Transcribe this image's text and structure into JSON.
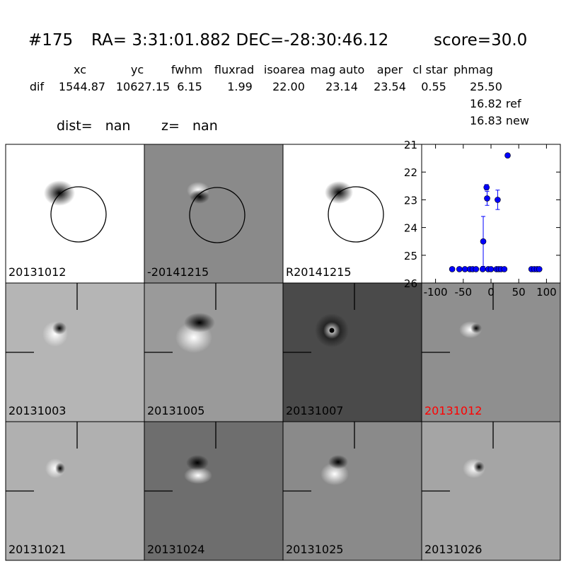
{
  "header": {
    "id": "#175",
    "coords": "RA= 3:31:01.882 DEC=-28:30:46.12",
    "score": "score=30.0"
  },
  "table": {
    "columns": [
      "xc",
      "yc",
      "fwhm",
      "fluxrad",
      "isoarea",
      "mag auto",
      "aper",
      "cl star",
      "phmag"
    ],
    "row_label": "dif",
    "row": [
      "1544.87",
      "10627.15",
      "6.15",
      "1.99",
      "22.00",
      "23.14",
      "23.54",
      "0.55",
      "25.50"
    ],
    "extra": [
      "16.82 ref",
      "16.83 new"
    ]
  },
  "info": {
    "dist": "dist=   nan",
    "z": "z=   nan"
  },
  "panels": [
    "20131012",
    "-20141215",
    "R20141215",
    "20131003",
    "20131005",
    "20131007",
    "20131012",
    "20131021",
    "20131024",
    "20131025",
    "20131026"
  ],
  "chart_data": {
    "type": "scatter",
    "x": [
      -70,
      -57,
      -47,
      -38,
      -33,
      -27,
      -14,
      -15,
      -8,
      -7,
      -5,
      0,
      10,
      12,
      14,
      18,
      24,
      30,
      73,
      78,
      83,
      87
    ],
    "values": [
      25.5,
      25.5,
      25.5,
      25.5,
      25.5,
      25.5,
      24.5,
      25.5,
      22.55,
      22.95,
      25.5,
      25.5,
      25.5,
      23.0,
      25.5,
      25.5,
      25.5,
      21.4,
      25.5,
      25.5,
      25.5,
      25.5
    ],
    "errors": [
      0.05,
      0.05,
      0.05,
      0.05,
      0.05,
      0.05,
      0.9,
      0.05,
      0.1,
      0.25,
      0.05,
      0.05,
      0.05,
      0.35,
      0.05,
      0.05,
      0.05,
      0.02,
      0.05,
      0.05,
      0.05,
      0.05
    ],
    "color": "#0000ff",
    "xlim": [
      -125,
      125
    ],
    "ylim": [
      26,
      21
    ],
    "xticks": [
      -100,
      -50,
      0,
      50,
      100
    ],
    "yticks": [
      21,
      22,
      23,
      24,
      25,
      26
    ]
  }
}
